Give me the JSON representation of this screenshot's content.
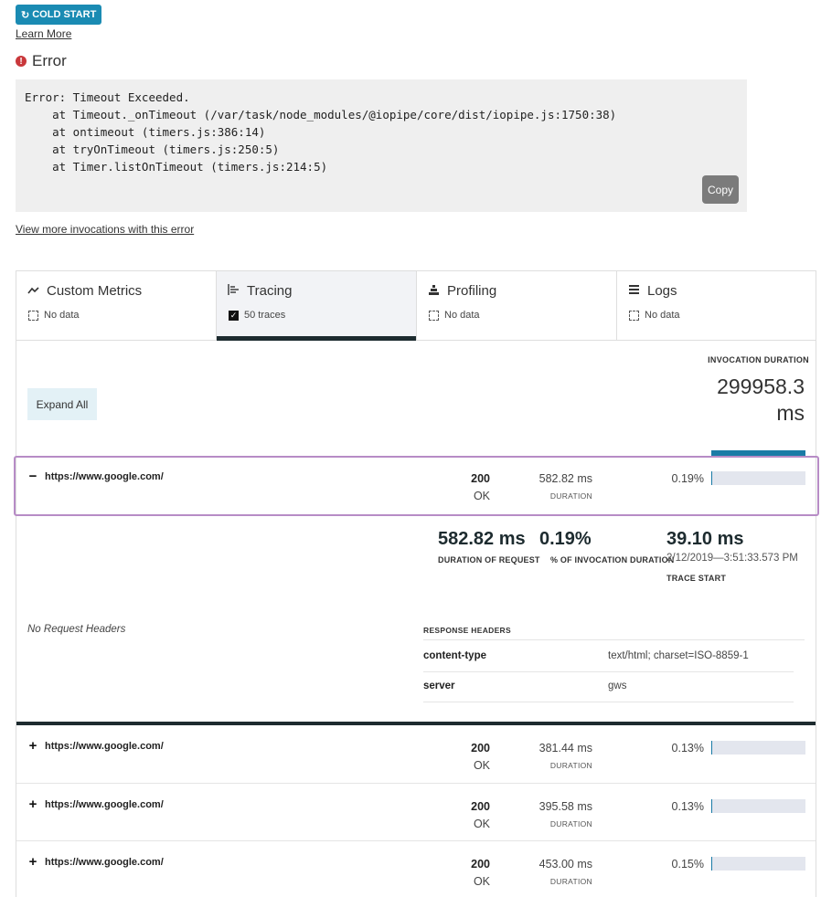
{
  "badge": {
    "label": "COLD START",
    "icon": "refresh-icon"
  },
  "learn_more": "Learn More",
  "error": {
    "title": "Error",
    "stack": "Error: Timeout Exceeded.\n    at Timeout._onTimeout (/var/task/node_modules/@iopipe/core/dist/iopipe.js:1750:38)\n    at ontimeout (timers.js:386:14)\n    at tryOnTimeout (timers.js:250:5)\n    at Timer.listOnTimeout (timers.js:214:5)",
    "copy_label": "Copy",
    "view_more": "View more invocations with this error"
  },
  "tabs": [
    {
      "label": "Custom Metrics",
      "icon": "metrics-icon",
      "sub": "No data",
      "checked": false,
      "active": false
    },
    {
      "label": "Tracing",
      "icon": "tracing-icon",
      "sub": "50 traces",
      "checked": true,
      "active": true
    },
    {
      "label": "Profiling",
      "icon": "profiling-icon",
      "sub": "No data",
      "checked": false,
      "active": false
    },
    {
      "label": "Logs",
      "icon": "logs-icon",
      "sub": "No data",
      "checked": false,
      "active": false
    }
  ],
  "tracing": {
    "expand_all": "Expand All",
    "invocation_label": "INVOCATION DURATION",
    "invocation_value": "299958.3 ms",
    "traces": [
      {
        "sign": "−",
        "url": "https://www.google.com/",
        "code": "200",
        "status": "OK",
        "duration": "582.82 ms",
        "duration_label": "DURATION",
        "percent": "0.19%",
        "fraction": 0.0019
      },
      {
        "sign": "+",
        "url": "https://www.google.com/",
        "code": "200",
        "status": "OK",
        "duration": "381.44 ms",
        "duration_label": "DURATION",
        "percent": "0.13%",
        "fraction": 0.0013
      },
      {
        "sign": "+",
        "url": "https://www.google.com/",
        "code": "200",
        "status": "OK",
        "duration": "395.58 ms",
        "duration_label": "DURATION",
        "percent": "0.13%",
        "fraction": 0.0013
      },
      {
        "sign": "+",
        "url": "https://www.google.com/",
        "code": "200",
        "status": "OK",
        "duration": "453.00 ms",
        "duration_label": "DURATION",
        "percent": "0.15%",
        "fraction": 0.0015
      }
    ],
    "detail": {
      "duration_value": "582.82 ms",
      "duration_label": "DURATION OF REQUEST",
      "percent_value": "0.19%",
      "percent_label": "% OF INVOCATION DURATION",
      "start_value": "39.10 ms",
      "start_date": "2/12/2019—3:51:33.573 PM",
      "start_label": "TRACE START",
      "no_request_headers": "No Request Headers",
      "response_headers_label": "RESPONSE HEADERS",
      "response_headers": [
        {
          "key": "content-type",
          "value": "text/html; charset=ISO-8859-1"
        },
        {
          "key": "server",
          "value": "gws"
        }
      ]
    }
  }
}
